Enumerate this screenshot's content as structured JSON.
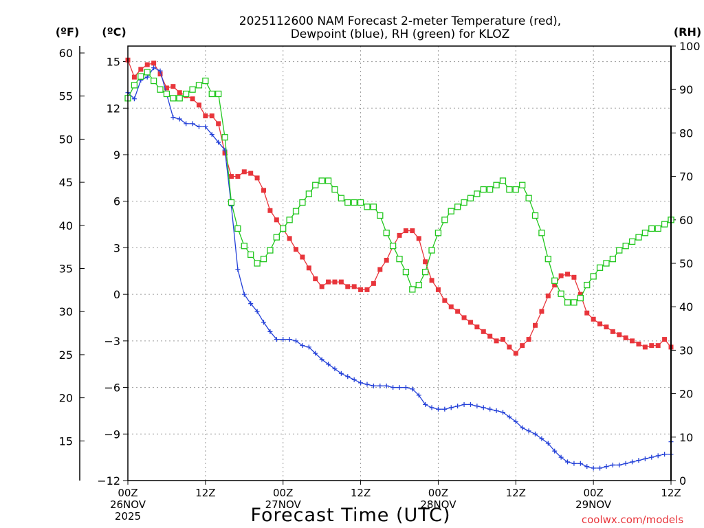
{
  "chart_data": {
    "type": "line",
    "title_line1": "2025112600 NAM Forecast 2-meter Temperature (red),",
    "title_line2": "Dewpoint (blue), RH (green) for KLOZ",
    "left_unit_f": "(ºF)",
    "left_unit_c": "(ºC)",
    "right_unit": "(RH)",
    "xlabel": "Forecast Time (UTC)",
    "credit": "coolwx.com/models",
    "x_hours_range": [
      0,
      84
    ],
    "c_range": [
      -12,
      16
    ],
    "rh_range": [
      0,
      100
    ],
    "f_ticks": [
      {
        "f": 60,
        "label": "60"
      },
      {
        "f": 55,
        "label": "55"
      },
      {
        "f": 50,
        "label": "50"
      },
      {
        "f": 45,
        "label": "45"
      },
      {
        "f": 40,
        "label": "40"
      },
      {
        "f": 35,
        "label": "35"
      },
      {
        "f": 30,
        "label": "30"
      },
      {
        "f": 25,
        "label": "25"
      },
      {
        "f": 20,
        "label": "20"
      },
      {
        "f": 15,
        "label": "15"
      }
    ],
    "c_ticks": [
      {
        "v": 15,
        "label": "15"
      },
      {
        "v": 12,
        "label": "12"
      },
      {
        "v": 9,
        "label": "9"
      },
      {
        "v": 6,
        "label": "6"
      },
      {
        "v": 3,
        "label": "3"
      },
      {
        "v": 0,
        "label": "0"
      },
      {
        "v": -3,
        "label": "−3"
      },
      {
        "v": -6,
        "label": "−6"
      },
      {
        "v": -9,
        "label": "−9"
      },
      {
        "v": -12,
        "label": "−12"
      }
    ],
    "rh_ticks": [
      {
        "v": 100,
        "label": "100"
      },
      {
        "v": 90,
        "label": "90"
      },
      {
        "v": 80,
        "label": "80"
      },
      {
        "v": 70,
        "label": "70"
      },
      {
        "v": 60,
        "label": "60"
      },
      {
        "v": 50,
        "label": "50"
      },
      {
        "v": 40,
        "label": "40"
      },
      {
        "v": 30,
        "label": "30"
      },
      {
        "v": 20,
        "label": "20"
      },
      {
        "v": 10,
        "label": "10"
      },
      {
        "v": 0,
        "label": "0"
      }
    ],
    "x_ticks": [
      {
        "h": 0,
        "lines": [
          "00Z",
          "26NOV",
          "2025"
        ]
      },
      {
        "h": 12,
        "lines": [
          "12Z"
        ]
      },
      {
        "h": 24,
        "lines": [
          "00Z",
          "27NOV"
        ]
      },
      {
        "h": 36,
        "lines": [
          "12Z"
        ]
      },
      {
        "h": 48,
        "lines": [
          "00Z",
          "28NOV"
        ]
      },
      {
        "h": 60,
        "lines": [
          "12Z"
        ]
      },
      {
        "h": 72,
        "lines": [
          "00Z",
          "29NOV"
        ]
      },
      {
        "h": 84,
        "lines": [
          "12Z"
        ]
      }
    ],
    "series": [
      {
        "name": "Temperature",
        "color": "#e8353b",
        "marker": "filled-square",
        "axis": "c",
        "points": [
          [
            0,
            15.1
          ],
          [
            1,
            14.0
          ],
          [
            2,
            14.5
          ],
          [
            3,
            14.8
          ],
          [
            4,
            14.9
          ],
          [
            5,
            14.2
          ],
          [
            6,
            13.3
          ],
          [
            7,
            13.4
          ],
          [
            8,
            13.0
          ],
          [
            9,
            12.8
          ],
          [
            10,
            12.6
          ],
          [
            11,
            12.2
          ],
          [
            12,
            11.5
          ],
          [
            13,
            11.5
          ],
          [
            14,
            11.0
          ],
          [
            15,
            9.1
          ],
          [
            16,
            7.6
          ],
          [
            17,
            7.6
          ],
          [
            18,
            7.9
          ],
          [
            19,
            7.8
          ],
          [
            20,
            7.5
          ],
          [
            21,
            6.7
          ],
          [
            22,
            5.4
          ],
          [
            23,
            4.8
          ],
          [
            24,
            4.2
          ],
          [
            25,
            3.6
          ],
          [
            26,
            2.9
          ],
          [
            27,
            2.4
          ],
          [
            28,
            1.7
          ],
          [
            29,
            1.0
          ],
          [
            30,
            0.5
          ],
          [
            31,
            0.8
          ],
          [
            32,
            0.8
          ],
          [
            33,
            0.8
          ],
          [
            34,
            0.5
          ],
          [
            35,
            0.5
          ],
          [
            36,
            0.3
          ],
          [
            37,
            0.3
          ],
          [
            38,
            0.7
          ],
          [
            39,
            1.6
          ],
          [
            40,
            2.2
          ],
          [
            41,
            3.1
          ],
          [
            42,
            3.8
          ],
          [
            43,
            4.1
          ],
          [
            44,
            4.1
          ],
          [
            45,
            3.6
          ],
          [
            46,
            2.1
          ],
          [
            47,
            0.9
          ],
          [
            48,
            0.3
          ],
          [
            49,
            -0.4
          ],
          [
            50,
            -0.8
          ],
          [
            51,
            -1.1
          ],
          [
            52,
            -1.5
          ],
          [
            53,
            -1.8
          ],
          [
            54,
            -2.1
          ],
          [
            55,
            -2.4
          ],
          [
            56,
            -2.7
          ],
          [
            57,
            -3.0
          ],
          [
            58,
            -2.9
          ],
          [
            59,
            -3.4
          ],
          [
            60,
            -3.8
          ],
          [
            61,
            -3.3
          ],
          [
            62,
            -2.9
          ],
          [
            63,
            -2.0
          ],
          [
            64,
            -1.1
          ],
          [
            65,
            -0.1
          ],
          [
            66,
            0.6
          ],
          [
            67,
            1.2
          ],
          [
            68,
            1.3
          ],
          [
            69,
            1.1
          ],
          [
            70,
            0.0
          ],
          [
            71,
            -1.2
          ],
          [
            72,
            -1.6
          ],
          [
            73,
            -1.9
          ],
          [
            74,
            -2.1
          ],
          [
            75,
            -2.4
          ],
          [
            76,
            -2.6
          ],
          [
            77,
            -2.8
          ],
          [
            78,
            -3.0
          ],
          [
            79,
            -3.2
          ],
          [
            80,
            -3.4
          ],
          [
            81,
            -3.3
          ],
          [
            82,
            -3.3
          ],
          [
            83,
            -2.9
          ],
          [
            84,
            -3.4
          ]
        ]
      },
      {
        "name": "Dewpoint",
        "color": "#2340d8",
        "marker": "plus",
        "axis": "c",
        "points": [
          [
            0,
            13.0
          ],
          [
            1,
            12.6
          ],
          [
            2,
            13.8
          ],
          [
            3,
            14.0
          ],
          [
            4,
            14.6
          ],
          [
            5,
            14.4
          ],
          [
            6,
            12.9
          ],
          [
            7,
            11.4
          ],
          [
            8,
            11.3
          ],
          [
            9,
            11.0
          ],
          [
            10,
            11.0
          ],
          [
            11,
            10.8
          ],
          [
            12,
            10.8
          ],
          [
            13,
            10.3
          ],
          [
            14,
            9.8
          ],
          [
            15,
            9.3
          ],
          [
            16,
            5.7
          ],
          [
            17,
            1.6
          ],
          [
            18,
            0.0
          ],
          [
            19,
            -0.6
          ],
          [
            20,
            -1.1
          ],
          [
            21,
            -1.8
          ],
          [
            22,
            -2.4
          ],
          [
            23,
            -2.9
          ],
          [
            24,
            -2.9
          ],
          [
            25,
            -2.9
          ],
          [
            26,
            -3.0
          ],
          [
            27,
            -3.3
          ],
          [
            28,
            -3.4
          ],
          [
            29,
            -3.8
          ],
          [
            30,
            -4.2
          ],
          [
            31,
            -4.5
          ],
          [
            32,
            -4.8
          ],
          [
            33,
            -5.1
          ],
          [
            34,
            -5.3
          ],
          [
            35,
            -5.5
          ],
          [
            36,
            -5.7
          ],
          [
            37,
            -5.8
          ],
          [
            38,
            -5.9
          ],
          [
            39,
            -5.9
          ],
          [
            40,
            -5.9
          ],
          [
            41,
            -6.0
          ],
          [
            42,
            -6.0
          ],
          [
            43,
            -6.0
          ],
          [
            44,
            -6.1
          ],
          [
            45,
            -6.5
          ],
          [
            46,
            -7.1
          ],
          [
            47,
            -7.3
          ],
          [
            48,
            -7.4
          ],
          [
            49,
            -7.4
          ],
          [
            50,
            -7.3
          ],
          [
            51,
            -7.2
          ],
          [
            52,
            -7.1
          ],
          [
            53,
            -7.1
          ],
          [
            54,
            -7.2
          ],
          [
            55,
            -7.3
          ],
          [
            56,
            -7.4
          ],
          [
            57,
            -7.5
          ],
          [
            58,
            -7.6
          ],
          [
            59,
            -7.9
          ],
          [
            60,
            -8.2
          ],
          [
            61,
            -8.6
          ],
          [
            62,
            -8.8
          ],
          [
            63,
            -9.0
          ],
          [
            64,
            -9.3
          ],
          [
            65,
            -9.6
          ],
          [
            66,
            -10.1
          ],
          [
            67,
            -10.5
          ],
          [
            68,
            -10.8
          ],
          [
            69,
            -10.9
          ],
          [
            70,
            -10.9
          ],
          [
            71,
            -11.1
          ],
          [
            72,
            -11.2
          ],
          [
            73,
            -11.2
          ],
          [
            74,
            -11.1
          ],
          [
            75,
            -11.0
          ],
          [
            76,
            -11.0
          ],
          [
            77,
            -10.9
          ],
          [
            78,
            -10.8
          ],
          [
            79,
            -10.7
          ],
          [
            80,
            -10.6
          ],
          [
            81,
            -10.5
          ],
          [
            82,
            -10.4
          ],
          [
            83,
            -10.3
          ],
          [
            84,
            -10.3
          ],
          [
            85,
            -9.5
          ]
        ]
      },
      {
        "name": "RH",
        "color": "#22c71e",
        "marker": "open-square",
        "axis": "rh",
        "points": [
          [
            0,
            88
          ],
          [
            1,
            91
          ],
          [
            2,
            93
          ],
          [
            3,
            94
          ],
          [
            4,
            92
          ],
          [
            5,
            90
          ],
          [
            6,
            89
          ],
          [
            7,
            88
          ],
          [
            8,
            88
          ],
          [
            9,
            89
          ],
          [
            10,
            90
          ],
          [
            11,
            91
          ],
          [
            12,
            92
          ],
          [
            13,
            89
          ],
          [
            14,
            89
          ],
          [
            15,
            79
          ],
          [
            16,
            64
          ],
          [
            17,
            58
          ],
          [
            18,
            54
          ],
          [
            19,
            52
          ],
          [
            20,
            50
          ],
          [
            21,
            51
          ],
          [
            22,
            53
          ],
          [
            23,
            56
          ],
          [
            24,
            58
          ],
          [
            25,
            60
          ],
          [
            26,
            62
          ],
          [
            27,
            64
          ],
          [
            28,
            66
          ],
          [
            29,
            68
          ],
          [
            30,
            69
          ],
          [
            31,
            69
          ],
          [
            32,
            67
          ],
          [
            33,
            65
          ],
          [
            34,
            64
          ],
          [
            35,
            64
          ],
          [
            36,
            64
          ],
          [
            37,
            63
          ],
          [
            38,
            63
          ],
          [
            39,
            61
          ],
          [
            40,
            57
          ],
          [
            41,
            54
          ],
          [
            42,
            51
          ],
          [
            43,
            48
          ],
          [
            44,
            44
          ],
          [
            45,
            45
          ],
          [
            46,
            48
          ],
          [
            47,
            53
          ],
          [
            48,
            57
          ],
          [
            49,
            60
          ],
          [
            50,
            62
          ],
          [
            51,
            63
          ],
          [
            52,
            64
          ],
          [
            53,
            65
          ],
          [
            54,
            66
          ],
          [
            55,
            67
          ],
          [
            56,
            67
          ],
          [
            57,
            68
          ],
          [
            58,
            69
          ],
          [
            59,
            67
          ],
          [
            60,
            67
          ],
          [
            61,
            68
          ],
          [
            62,
            65
          ],
          [
            63,
            61
          ],
          [
            64,
            57
          ],
          [
            65,
            51
          ],
          [
            66,
            46
          ],
          [
            67,
            43
          ],
          [
            68,
            41
          ],
          [
            69,
            41
          ],
          [
            70,
            42
          ],
          [
            71,
            45
          ],
          [
            72,
            47
          ],
          [
            73,
            49
          ],
          [
            74,
            50
          ],
          [
            75,
            51
          ],
          [
            76,
            53
          ],
          [
            77,
            54
          ],
          [
            78,
            55
          ],
          [
            79,
            56
          ],
          [
            80,
            57
          ],
          [
            81,
            58
          ],
          [
            82,
            58
          ],
          [
            83,
            59
          ],
          [
            84,
            60
          ],
          [
            85,
            60
          ]
        ]
      }
    ]
  }
}
